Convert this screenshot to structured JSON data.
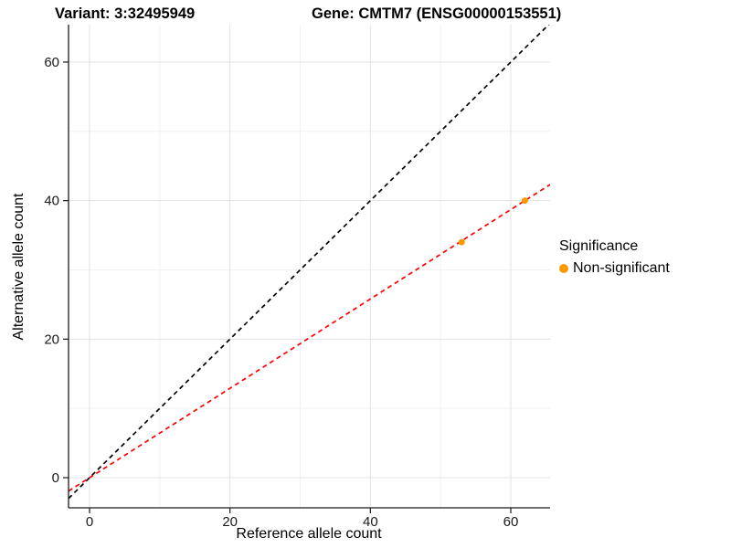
{
  "titles": {
    "left": "Variant: 3:32495949",
    "right": "Gene: CMTM7 (ENSG00000153551)"
  },
  "chart_data": {
    "type": "scatter",
    "title": "Variant: 3:32495949 / Gene: CMTM7 (ENSG00000153551)",
    "xlabel": "Reference allele count",
    "ylabel": "Alternative allele count",
    "xlim": [
      -3.0,
      65.6
    ],
    "ylim": [
      -4.35,
      65.4
    ],
    "xticks": [
      0,
      20,
      40,
      60
    ],
    "yticks": [
      0,
      20,
      40,
      60
    ],
    "xminor": [
      10,
      30,
      50
    ],
    "yminor": [
      10,
      30,
      50
    ],
    "grid": "on",
    "points": [
      {
        "x": 53,
        "y": 34,
        "significance": "Non-significant"
      },
      {
        "x": 62,
        "y": 40,
        "significance": "Non-significant"
      }
    ],
    "point_color": "#FF9900",
    "lines": [
      {
        "name": "identity-line",
        "slope": 1.0,
        "intercept": 0,
        "color": "#000000",
        "style": "dashed"
      },
      {
        "name": "fit-line",
        "slope": 0.645,
        "intercept": 0,
        "color": "#FF0000",
        "style": "dashed"
      }
    ],
    "legend": {
      "title": "Significance",
      "position": "right",
      "items": [
        {
          "label": "Non-significant",
          "color": "#FF9900"
        }
      ]
    },
    "colors": {
      "grid_major": "#E3E3E3",
      "grid_minor": "#F1F1F1",
      "axis_line": "#1A1A1A",
      "tick_text": "#1A1A1A"
    }
  }
}
